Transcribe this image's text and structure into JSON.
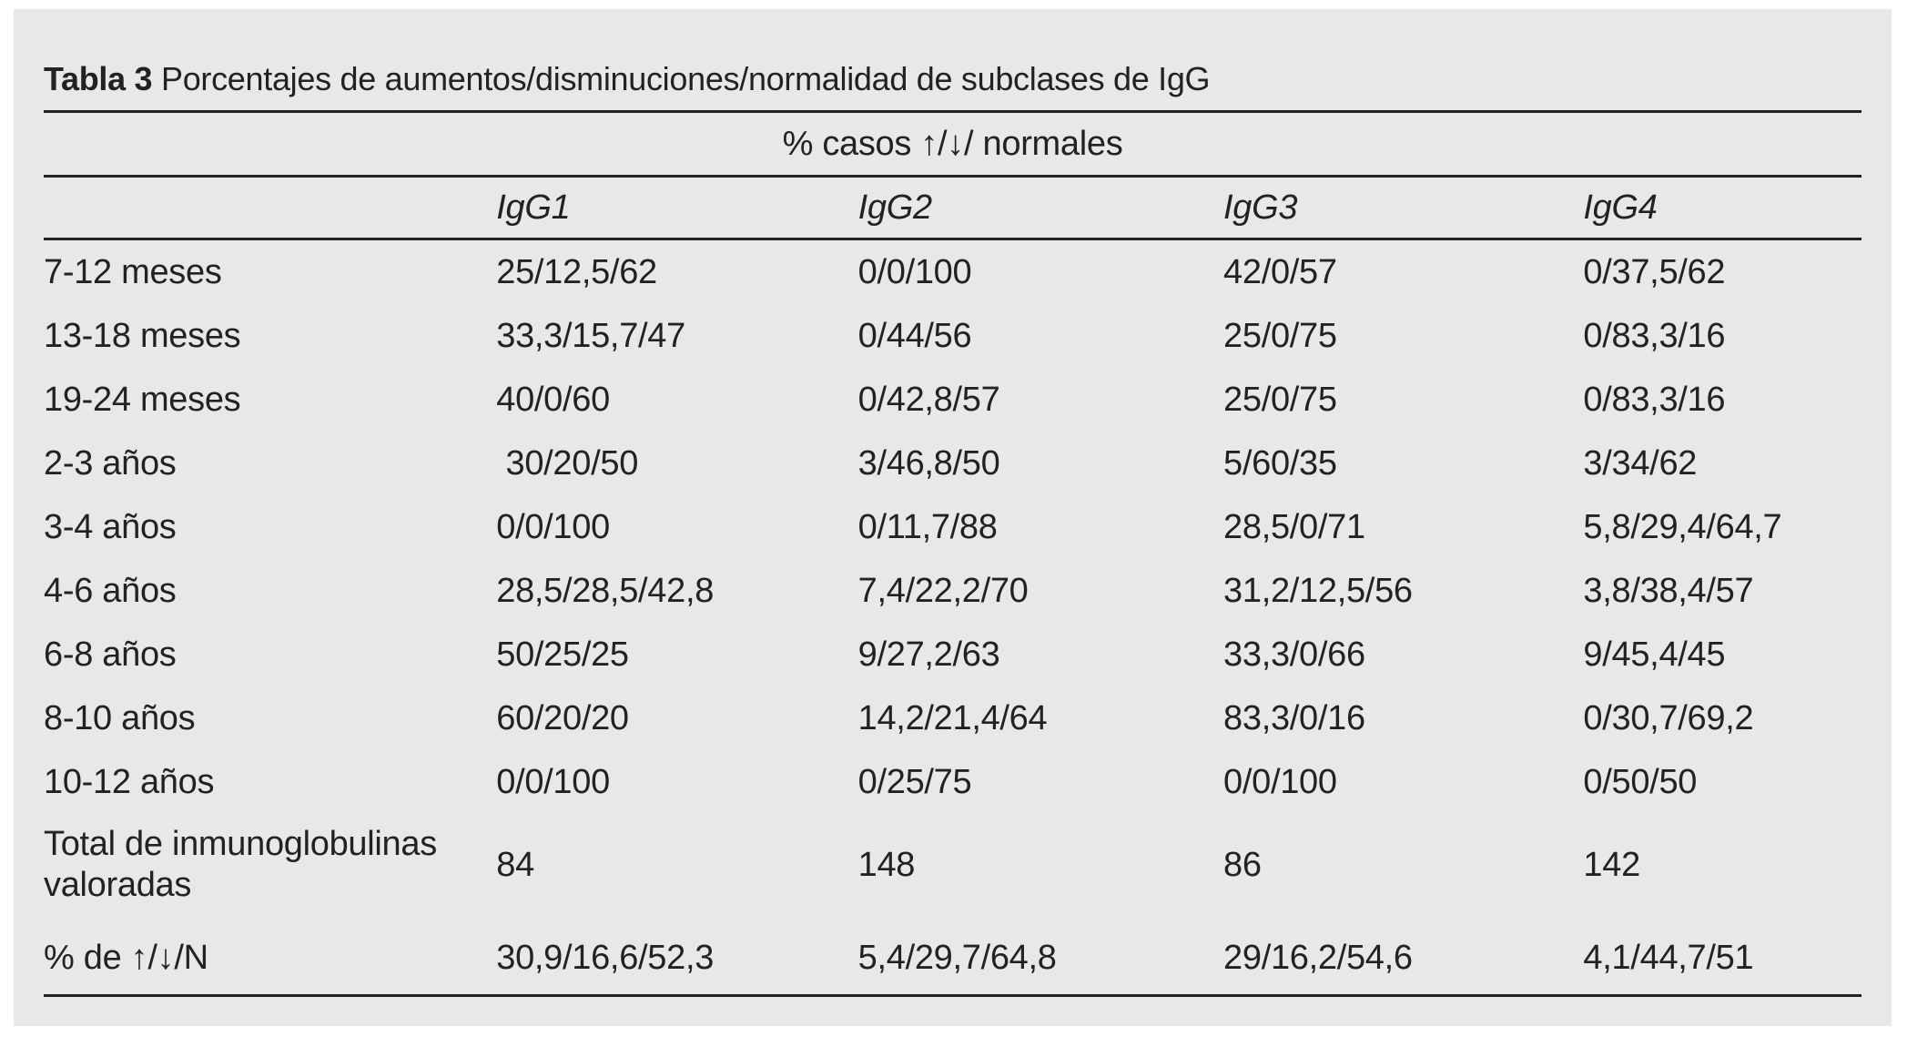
{
  "colors": {
    "page_background": "#ffffff",
    "panel_background": "#e7e8ea",
    "text": "#242122",
    "rule": "#242122"
  },
  "table": {
    "title_bold": "Tabla 3",
    "title_rest": " Porcentajes de aumentos/disminuciones/normalidad de subclases de IgG",
    "span_header": "% casos ↑/↓/ normales",
    "columns": [
      "IgG1",
      "IgG2",
      "IgG3",
      "IgG4"
    ],
    "rows": [
      {
        "label": "7-12 meses",
        "values": [
          "25/12,5/62",
          "0/0/100",
          "42/0/57",
          "0/37,5/62"
        ]
      },
      {
        "label": "13-18 meses",
        "values": [
          "33,3/15,7/47",
          "0/44/56",
          "25/0/75",
          "0/83,3/16"
        ]
      },
      {
        "label": "19-24 meses",
        "values": [
          "40/0/60",
          "0/42,8/57",
          "25/0/75",
          "0/83,3/16"
        ]
      },
      {
        "label": "2-3 años",
        "values": [
          " 30/20/50",
          "3/46,8/50",
          "5/60/35",
          "3/34/62"
        ]
      },
      {
        "label": "3-4 años",
        "values": [
          "0/0/100",
          "0/11,7/88",
          "28,5/0/71",
          "5,8/29,4/64,7"
        ]
      },
      {
        "label": "4-6 años",
        "values": [
          "28,5/28,5/42,8",
          "7,4/22,2/70",
          "31,2/12,5/56",
          "3,8/38,4/57"
        ]
      },
      {
        "label": "6-8 años",
        "values": [
          "50/25/25",
          "9/27,2/63",
          "33,3/0/66",
          "9/45,4/45"
        ]
      },
      {
        "label": "8-10 años",
        "values": [
          "60/20/20",
          "14,2/21,4/64",
          "83,3/0/16",
          "0/30,7/69,2"
        ]
      },
      {
        "label": "10-12 años",
        "values": [
          "0/0/100",
          "0/25/75",
          "0/0/100",
          "0/50/50"
        ]
      },
      {
        "label": "Total de inmunoglobulinas\nvaloradas",
        "values": [
          "84",
          "148",
          "86",
          "142"
        ],
        "kind": "total"
      },
      {
        "label": "% de ↑/↓/N",
        "values": [
          "30,9/16,6/52,3",
          "5,4/29,7/64,8",
          "29/16,2/54,6",
          "4,1/44,7/51"
        ],
        "kind": "final"
      }
    ]
  }
}
